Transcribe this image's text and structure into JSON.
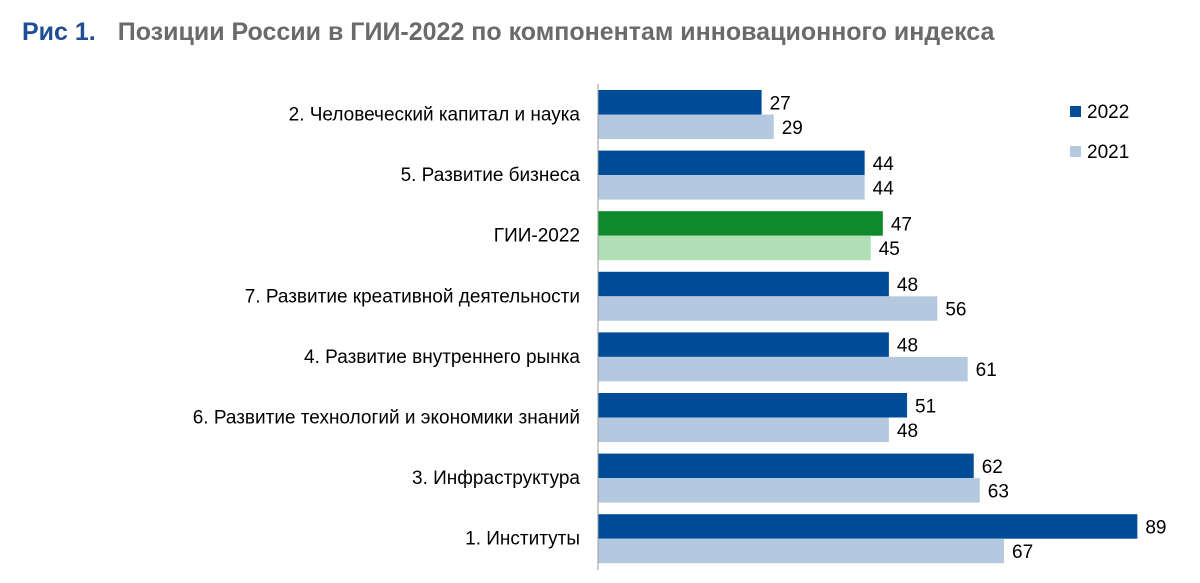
{
  "figure": {
    "number": "Рис 1.",
    "title": "Позиции России в ГИИ-2022 по компонентам инновационного индекса"
  },
  "colors": {
    "series_2022": "#004c97",
    "series_2021": "#b4c9e0",
    "highlight_2022": "#0c8a2c",
    "highlight_2021": "#b0dfb5",
    "axis": "#9a9a9a",
    "title_accent": "#1f4e96",
    "title_text": "#6a6a6a"
  },
  "chart_data": {
    "type": "bar",
    "orientation": "horizontal",
    "categories": [
      "2. Человеческий капитал и наука",
      "5. Развитие бизнеса",
      "ГИИ-2022",
      "7. Развитие креативной деятельности",
      "4. Развитие внутреннего рынка",
      "6. Развитие технологий и экономики знаний",
      "3. Инфраструктура",
      "1. Институты"
    ],
    "series": [
      {
        "name": "2022",
        "values": [
          27,
          44,
          47,
          48,
          48,
          51,
          62,
          89
        ]
      },
      {
        "name": "2021",
        "values": [
          29,
          44,
          45,
          56,
          61,
          48,
          63,
          67
        ]
      }
    ],
    "highlight_category": "ГИИ-2022",
    "xlim": [
      0,
      90
    ],
    "legend_position": "top-right",
    "grid": false,
    "data_labels": true
  }
}
